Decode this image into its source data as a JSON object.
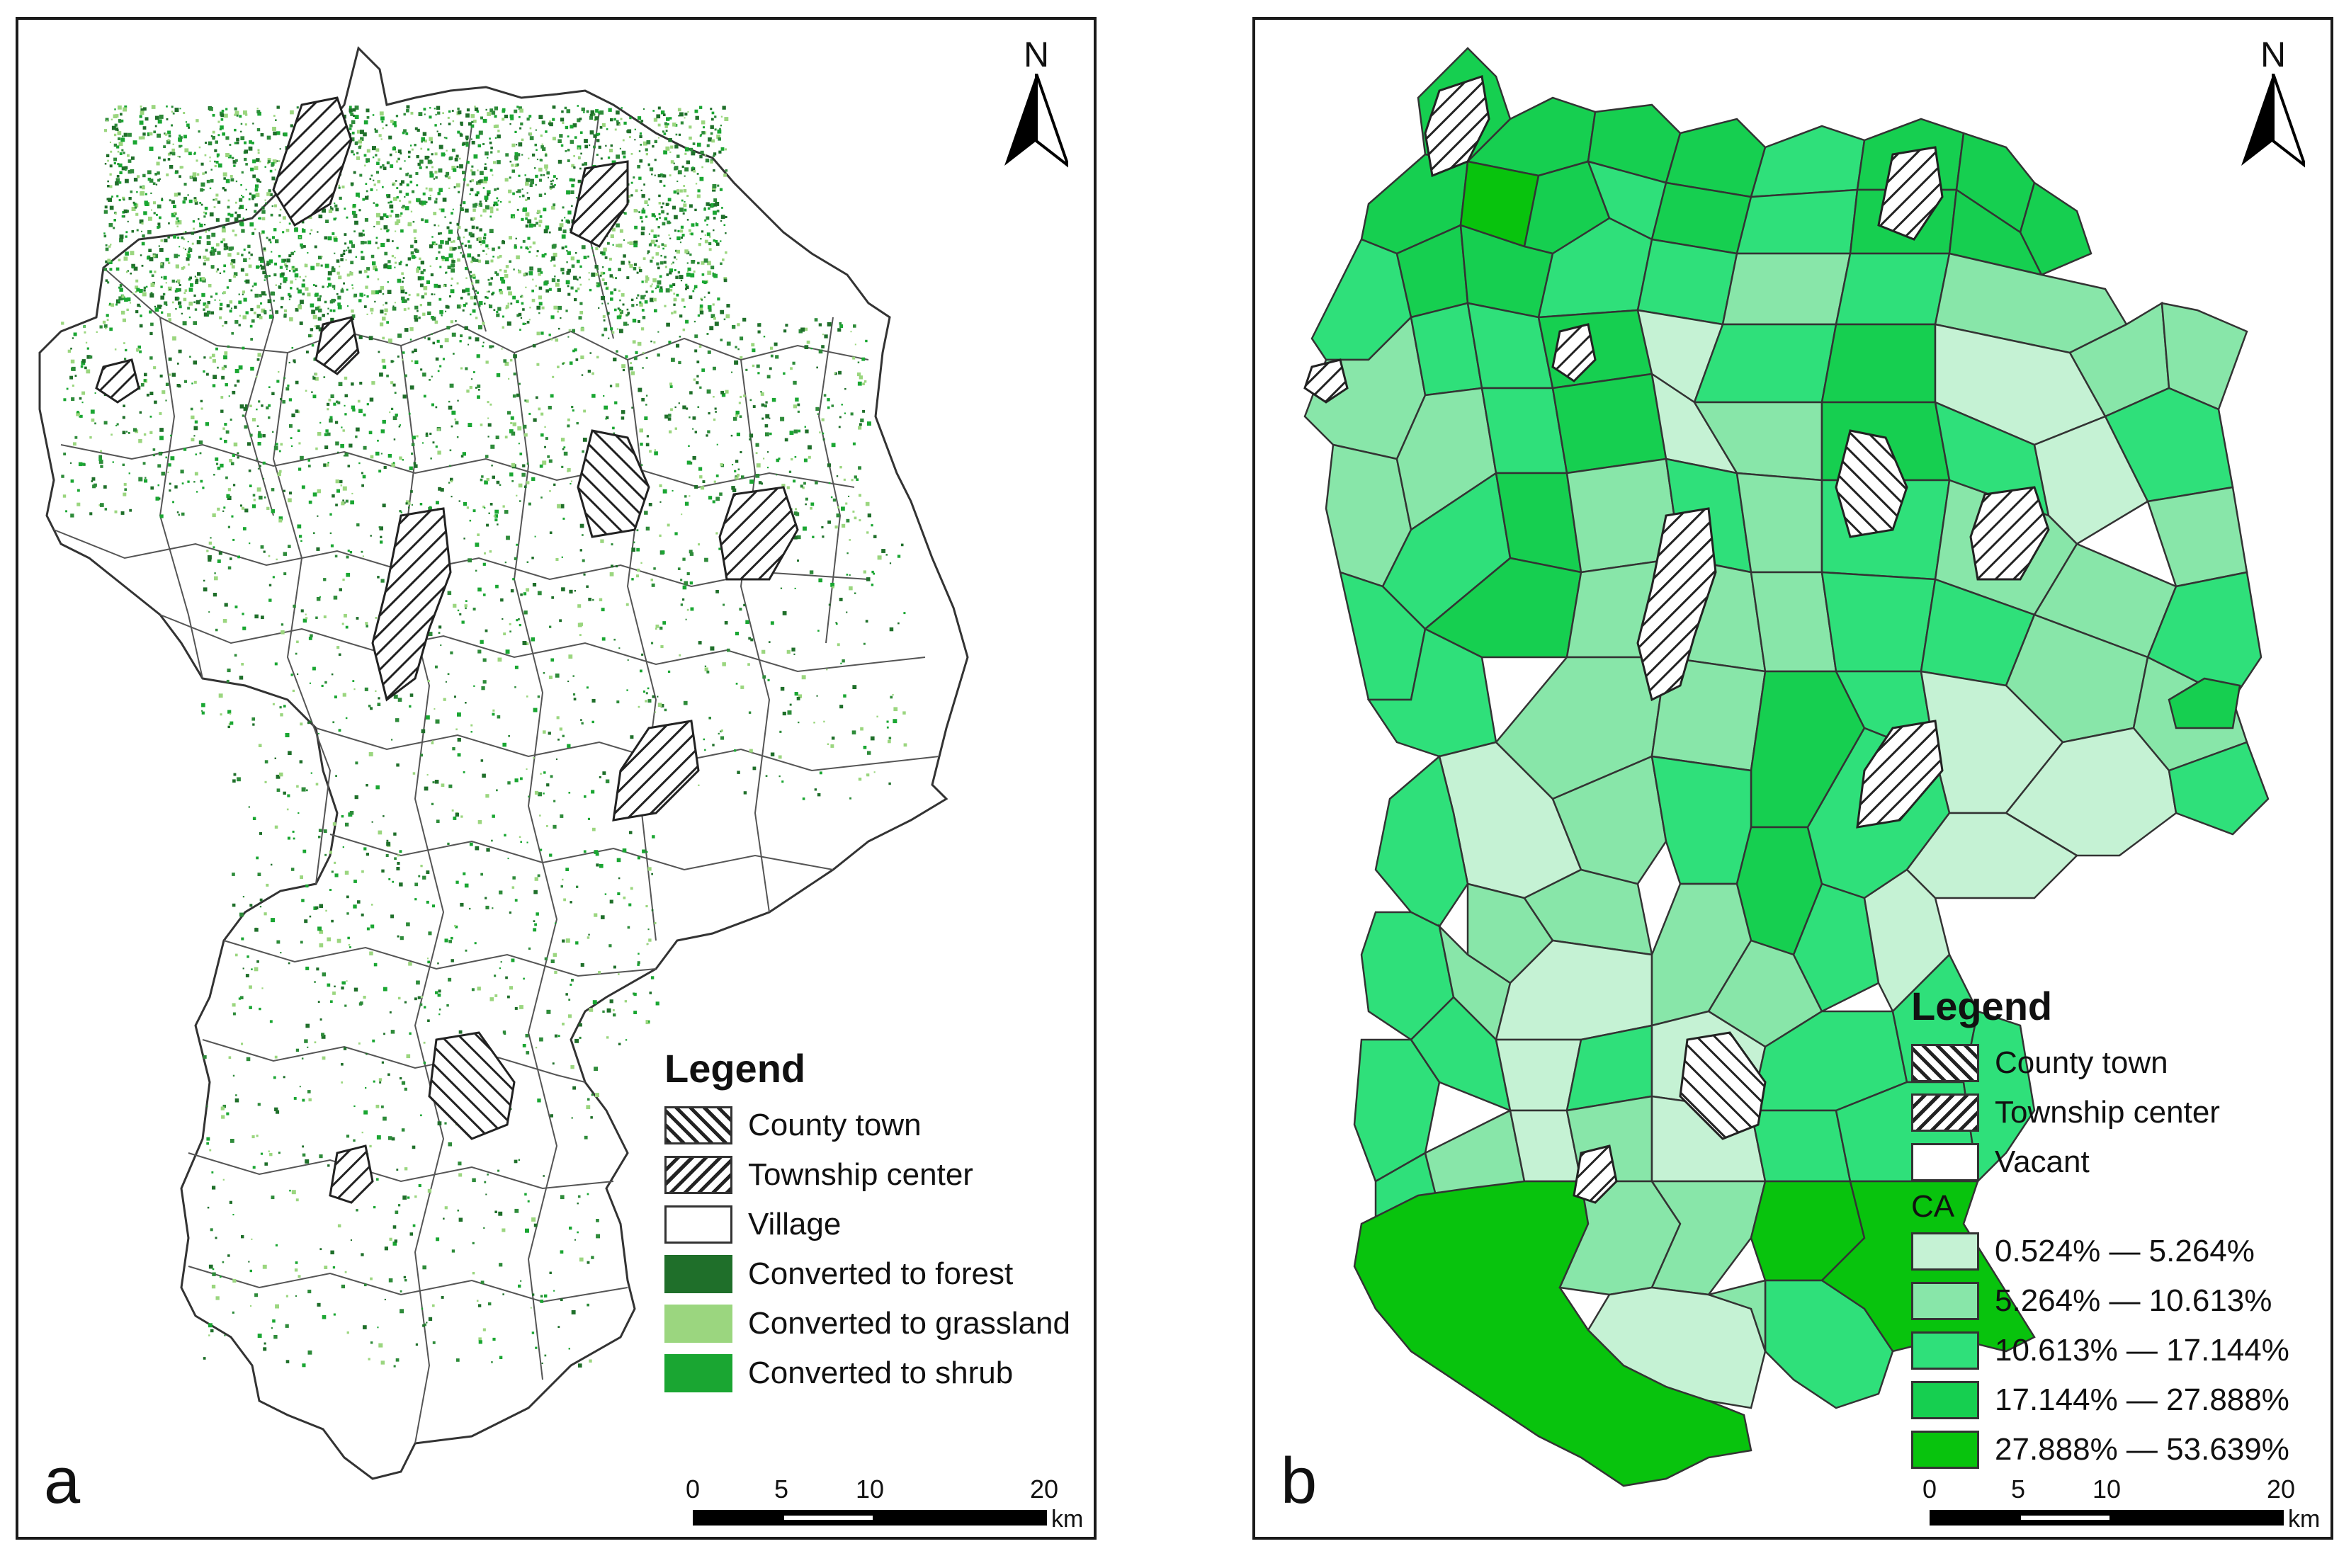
{
  "panel_a": {
    "letter": "a",
    "north": "N",
    "legend": {
      "title": "Legend",
      "items": [
        {
          "label": "County town",
          "swatch": "hatch-back"
        },
        {
          "label": "Township center",
          "swatch": "hatch-fwd"
        },
        {
          "label": "Village",
          "swatch": "#ffffff"
        },
        {
          "label": "Converted to forest",
          "swatch": "#1f6f2a"
        },
        {
          "label": "Converted to grassland",
          "swatch": "#9bd67f"
        },
        {
          "label": "Converted to shrub",
          "swatch": "#1aa632"
        }
      ]
    },
    "scalebar": {
      "ticks": [
        "0",
        "5",
        "10",
        "20"
      ],
      "unit": "km"
    }
  },
  "panel_b": {
    "letter": "b",
    "north": "N",
    "legend": {
      "title": "Legend",
      "items": [
        {
          "label": "County town",
          "swatch": "hatch-back"
        },
        {
          "label": "Township center",
          "swatch": "hatch-fwd"
        },
        {
          "label": "Vacant",
          "swatch": "#ffffff"
        }
      ],
      "ca_label": "CA",
      "classes": [
        {
          "label": "0.524% — 5.264%",
          "color": "#c5f2d4"
        },
        {
          "label": "5.264% — 10.613%",
          "color": "#88e6a9"
        },
        {
          "label": "10.613% — 17.144%",
          "color": "#2fe07a"
        },
        {
          "label": "17.144% — 27.888%",
          "color": "#16cf50"
        },
        {
          "label": "27.888% — 53.639%",
          "color": "#08c30d"
        }
      ]
    },
    "scalebar": {
      "ticks": [
        "0",
        "5",
        "10",
        "20"
      ],
      "unit": "km"
    }
  }
}
